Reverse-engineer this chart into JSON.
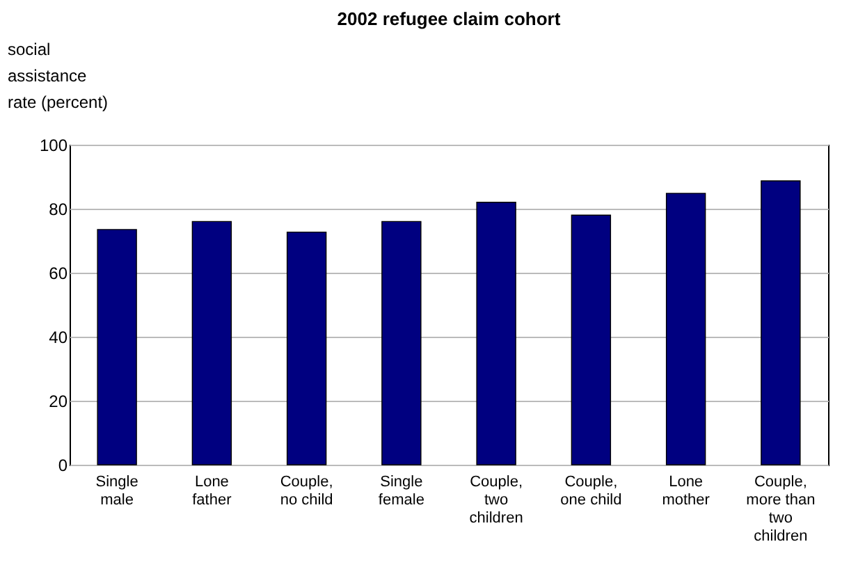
{
  "chart_data": {
    "type": "bar",
    "title": "2002 refugee claim cohort",
    "ylabel": "social assistance rate (percent)",
    "categories": [
      "Single male",
      "Lone father",
      "Couple, no child",
      "Single female",
      "Couple, two children",
      "Couple, one child",
      "Lone mother",
      "Couple, more than two children"
    ],
    "values": [
      73.5,
      76,
      72.7,
      76,
      82,
      78,
      84.8,
      88.7
    ],
    "color": "#000080",
    "ylim": [
      0,
      100
    ],
    "yticks": [
      0,
      20,
      40,
      60,
      80,
      100
    ],
    "grid": "y"
  }
}
